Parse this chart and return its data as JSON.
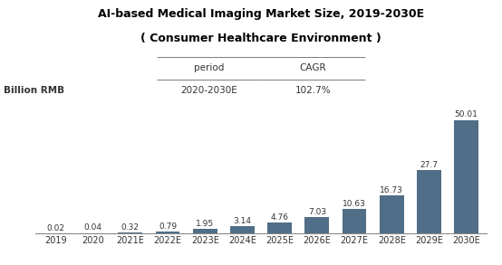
{
  "title_line1": "AI-based Medical Imaging Market Size, 2019-2030E",
  "title_line2": "( Consumer Healthcare Environment )",
  "ylabel": "Billion RMB",
  "categories": [
    "2019",
    "2020",
    "2021E",
    "2022E",
    "2023E",
    "2024E",
    "2025E",
    "2026E",
    "2027E",
    "2028E",
    "2029E",
    "2030E"
  ],
  "values": [
    0.02,
    0.04,
    0.32,
    0.79,
    1.95,
    3.14,
    4.76,
    7.03,
    10.63,
    16.73,
    27.7,
    50.01
  ],
  "bar_color": "#506e87",
  "table_headers": [
    "period",
    "CAGR"
  ],
  "table_data": [
    [
      "2020-2030E",
      "102.7%"
    ]
  ],
  "title_fontsize": 9,
  "ylabel_fontsize": 7.5,
  "xtick_fontsize": 7,
  "bar_label_fontsize": 6.5,
  "table_fontsize": 7.5,
  "background_color": "#ffffff"
}
